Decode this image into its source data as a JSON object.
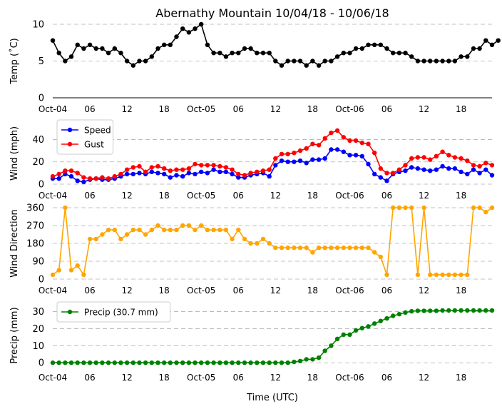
{
  "chart_data": {
    "type": "line",
    "title": "Abernathy Mountain 10/04/18 - 10/06/18",
    "xlabel": "Time (UTC)",
    "x_tick_labels": [
      "Oct-04",
      "06",
      "12",
      "18",
      "Oct-05",
      "06",
      "12",
      "18",
      "Oct-06",
      "06",
      "12",
      "18"
    ],
    "x_tick_hours": [
      0,
      6,
      12,
      18,
      24,
      30,
      36,
      42,
      48,
      54,
      60,
      66
    ],
    "x_range_hours": [
      0,
      71
    ],
    "grid": true,
    "panels": [
      {
        "id": "temp",
        "ylabel": "Temp (˚C)",
        "ylim": [
          0,
          10
        ],
        "yticks": [
          0,
          5,
          10
        ],
        "legend": null,
        "series": [
          {
            "name": "",
            "color": "#000000",
            "values": [
              7.8,
              6.1,
              5.0,
              5.6,
              7.2,
              6.7,
              7.2,
              6.7,
              6.7,
              6.1,
              6.7,
              6.1,
              5.0,
              4.4,
              5.0,
              5.0,
              5.6,
              6.7,
              7.2,
              7.2,
              8.3,
              9.4,
              8.9,
              9.4,
              10.0,
              7.2,
              6.1,
              6.1,
              5.6,
              6.1,
              6.1,
              6.7,
              6.7,
              6.1,
              6.1,
              6.1,
              5.0,
              4.4,
              5.0,
              5.0,
              5.0,
              4.4,
              5.0,
              4.4,
              5.0,
              5.0,
              5.6,
              6.1,
              6.1,
              6.7,
              6.7,
              7.2,
              7.2,
              7.2,
              6.7,
              6.1,
              6.1,
              6.1,
              5.6,
              5.0,
              5.0,
              5.0,
              5.0,
              5.0,
              5.0,
              5.0,
              5.6,
              5.6,
              6.7,
              6.7,
              7.8,
              7.2,
              7.8
            ]
          }
        ]
      },
      {
        "id": "wind",
        "ylabel": "Wind (mph)",
        "ylim": [
          0,
          55
        ],
        "yticks": [
          0,
          20,
          40
        ],
        "legend": "top-left",
        "series": [
          {
            "name": "Speed",
            "color": "#0000ff",
            "values": [
              5,
              5,
              9,
              7,
              3,
              2,
              4,
              5,
              4,
              4,
              5,
              7,
              9,
              9,
              10,
              9,
              11,
              10,
              9,
              6,
              8,
              7,
              10,
              9,
              11,
              10,
              13,
              11,
              11,
              9,
              6,
              6,
              8,
              9,
              10,
              7,
              17,
              21,
              20,
              20,
              21,
              19,
              22,
              22,
              23,
              31,
              31,
              29,
              26,
              26,
              25,
              18,
              9,
              6,
              3,
              9,
              11,
              12,
              15,
              14,
              13,
              12,
              13,
              16,
              14,
              14,
              11,
              9,
              13,
              10,
              13,
              8
            ]
          },
          {
            "name": "Gust",
            "color": "#ff0000",
            "values": [
              7,
              9,
              12,
              12,
              10,
              6,
              5,
              5,
              6,
              5,
              7,
              9,
              13,
              15,
              16,
              11,
              15,
              16,
              14,
              12,
              13,
              13,
              14,
              18,
              17,
              17,
              17,
              16,
              15,
              13,
              9,
              8,
              10,
              11,
              12,
              13,
              23,
              27,
              27,
              28,
              30,
              32,
              36,
              35,
              41,
              46,
              48,
              42,
              39,
              39,
              37,
              36,
              28,
              14,
              10,
              10,
              13,
              17,
              23,
              24,
              24,
              22,
              25,
              29,
              26,
              24,
              23,
              21,
              17,
              16,
              19,
              17
            ]
          }
        ]
      },
      {
        "id": "direction",
        "ylabel": "Wind Direction",
        "ylim": [
          0,
          360
        ],
        "yticks": [
          0,
          90,
          180,
          270,
          360
        ],
        "legend": null,
        "series": [
          {
            "name": "",
            "color": "#ffa500",
            "values": [
              22,
              45,
              360,
              45,
              68,
              22,
              202,
              202,
              225,
              248,
              248,
              202,
              225,
              248,
              248,
              225,
              248,
              270,
              248,
              248,
              248,
              270,
              270,
              248,
              270,
              248,
              248,
              248,
              248,
              202,
              248,
              202,
              180,
              180,
              202,
              180,
              158,
              158,
              158,
              158,
              158,
              158,
              135,
              158,
              158,
              158,
              158,
              158,
              158,
              158,
              158,
              158,
              135,
              112,
              22,
              360,
              360,
              360,
              360,
              22,
              360,
              22,
              22,
              22,
              22,
              22,
              22,
              22,
              360,
              360,
              338,
              360
            ]
          }
        ]
      },
      {
        "id": "precip",
        "ylabel": "Precip (mm)",
        "ylim": [
          -2,
          34
        ],
        "yticks": [
          0,
          10,
          20,
          30
        ],
        "legend": "top-left",
        "series": [
          {
            "name": "Precip (30.7 mm)",
            "color": "#008000",
            "values": [
              0,
              0,
              0,
              0,
              0,
              0,
              0,
              0,
              0,
              0,
              0,
              0,
              0,
              0,
              0,
              0,
              0,
              0,
              0,
              0,
              0,
              0,
              0,
              0,
              0,
              0,
              0,
              0,
              0,
              0,
              0,
              0,
              0,
              0,
              0,
              0,
              0,
              0,
              0,
              0.5,
              1.0,
              2.0,
              2.0,
              3.0,
              7.0,
              10.0,
              14.0,
              16.5,
              16.5,
              19.0,
              20.3,
              21.3,
              23.0,
              24.5,
              26.0,
              27.5,
              28.5,
              29.5,
              30.2,
              30.5,
              30.5,
              30.5,
              30.5,
              30.7,
              30.7,
              30.7,
              30.7,
              30.7,
              30.7,
              30.7,
              30.7,
              30.7
            ]
          }
        ]
      }
    ]
  }
}
